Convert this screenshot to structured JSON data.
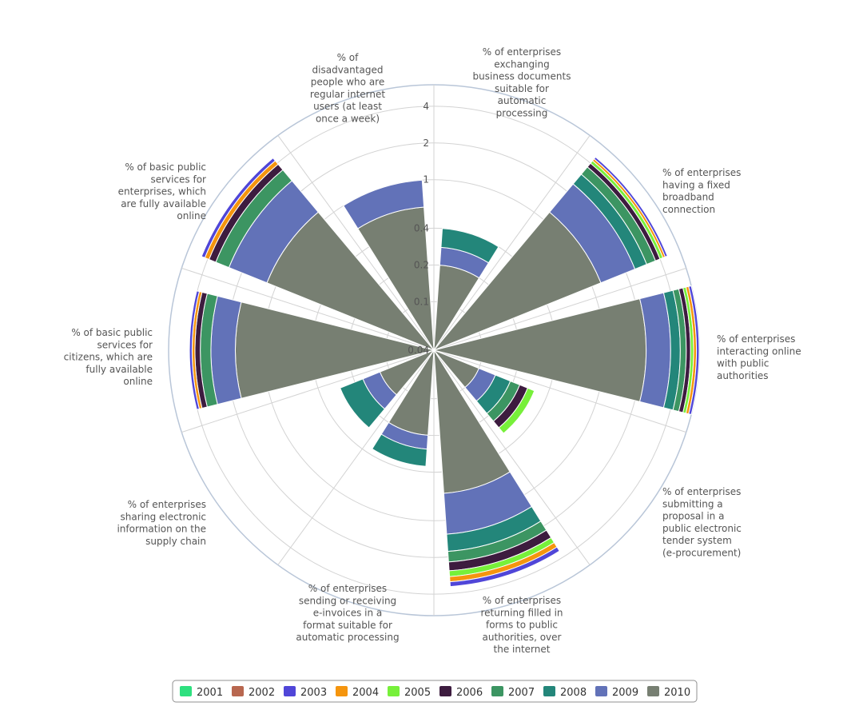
{
  "chart_data": {
    "type": "polar-stacked-bar",
    "title": "",
    "axis": {
      "scale": "log",
      "tick_labels": [
        "0.04",
        "0.1",
        "0.2",
        "0.4",
        "1",
        "2",
        "4"
      ],
      "tick_values": [
        0.04,
        0.1,
        0.2,
        0.4,
        1,
        2,
        4
      ],
      "range": [
        0.04,
        6
      ]
    },
    "grid": true,
    "legend_position": "bottom",
    "categories": [
      "% of enterprises exchanging business documents suitable for automatic processing",
      "% of enterprises having a fixed broadband connection",
      "% of enterprises interacting online with public authorities",
      "% of enterprises submitting a proposal in a public electronic tender system (e-procurement)",
      "% of enterprises returning filled in forms to public authorities, over the internet",
      "% of enterprises sending or receiving e-invoices in a format suitable for automatic processing",
      "% of enterprises sharing electronic information on the supply chain",
      "% of basic public services for citizens, which are fully available online",
      "% of basic public services for enterprises, which are fully available online",
      "% of disadvantaged people who are regular internet users (at least once a week)"
    ],
    "series": [
      {
        "name": "2001",
        "color": "#2ee07f",
        "values": [
          0,
          0,
          0,
          0,
          0,
          0,
          0,
          0,
          0.02,
          0
        ]
      },
      {
        "name": "2002",
        "color": "#b8674f",
        "values": [
          0,
          0,
          0,
          0,
          0,
          0,
          0,
          0,
          0.02,
          0
        ]
      },
      {
        "name": "2003",
        "color": "#5046d8",
        "values": [
          0,
          0.2,
          0.3,
          0,
          0.3,
          0,
          0,
          0.2,
          0.3,
          0
        ]
      },
      {
        "name": "2004",
        "color": "#f5950e",
        "values": [
          0,
          0.2,
          0.3,
          0,
          0.3,
          0,
          0,
          0.2,
          0.35,
          0
        ]
      },
      {
        "name": "2005",
        "color": "#77f03a",
        "values": [
          0,
          0.25,
          0.3,
          0.04,
          0.3,
          0,
          0,
          0,
          0,
          0
        ]
      },
      {
        "name": "2006",
        "color": "#3d1c3f",
        "values": [
          0,
          0.35,
          0.4,
          0.04,
          0.4,
          0,
          0,
          0.35,
          0.5,
          0
        ]
      },
      {
        "name": "2007",
        "color": "#3c9562",
        "values": [
          0,
          0.6,
          0.5,
          0.04,
          0.4,
          0,
          0,
          0.6,
          0.8,
          0
        ]
      },
      {
        "name": "2008",
        "color": "#23867a",
        "values": [
          0.12,
          0.65,
          0.7,
          0.05,
          0.5,
          0.1,
          0.1,
          0,
          0,
          0
        ]
      },
      {
        "name": "2009",
        "color": "#6272b8",
        "values": [
          0.08,
          1.2,
          1.3,
          0.04,
          0.7,
          0.06,
          0.05,
          1.0,
          1.4,
          0.4
        ]
      },
      {
        "name": "2010",
        "color": "#777f72",
        "values": [
          0.2,
          1.2,
          2.2,
          0.1,
          0.6,
          0.2,
          0.12,
          1.7,
          1.2,
          0.6
        ]
      }
    ]
  },
  "legend": {
    "items": [
      "2001",
      "2002",
      "2003",
      "2004",
      "2005",
      "2006",
      "2007",
      "2008",
      "2009",
      "2010"
    ]
  }
}
